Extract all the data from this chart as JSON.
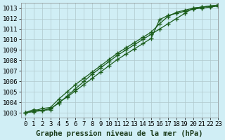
{
  "title": "Graphe pression niveau de la mer (hPa)",
  "background_color": "#d0eef5",
  "grid_color": "#b0c8cc",
  "line_color": "#1a5c1a",
  "marker_color": "#1a5c1a",
  "xlim": [
    -0.5,
    23
  ],
  "ylim": [
    1002.5,
    1013.5
  ],
  "yticks": [
    1003,
    1004,
    1005,
    1006,
    1007,
    1008,
    1009,
    1010,
    1011,
    1012,
    1013
  ],
  "xticks": [
    0,
    1,
    2,
    3,
    4,
    5,
    6,
    7,
    8,
    9,
    10,
    11,
    12,
    13,
    14,
    15,
    16,
    17,
    18,
    19,
    20,
    21,
    22,
    23
  ],
  "series": [
    [
      1003.0,
      1003.1,
      1003.2,
      1003.3,
      1004.0,
      1004.5,
      1005.1,
      1005.7,
      1006.3,
      1006.9,
      1007.5,
      1008.1,
      1008.6,
      1009.1,
      1009.6,
      1010.1,
      1011.9,
      1012.3,
      1012.5,
      1012.7,
      1012.9,
      1013.0,
      1013.1,
      1013.2
    ],
    [
      1003.0,
      1003.15,
      1003.4,
      1003.5,
      1004.3,
      1005.0,
      1005.7,
      1006.3,
      1006.9,
      1007.5,
      1008.1,
      1008.7,
      1009.2,
      1009.7,
      1010.2,
      1010.7,
      1011.5,
      1012.2,
      1012.6,
      1012.8,
      1013.0,
      1013.1,
      1013.2,
      1013.3
    ],
    [
      1003.0,
      1003.3,
      1003.2,
      1003.4,
      1003.9,
      1004.6,
      1005.3,
      1006.0,
      1006.7,
      1007.3,
      1007.9,
      1008.5,
      1009.0,
      1009.5,
      1010.0,
      1010.5,
      1011.0,
      1011.5,
      1012.0,
      1012.5,
      1013.0,
      1013.1,
      1013.2,
      1013.3
    ]
  ],
  "tick_fontsize": 6.5,
  "title_fontsize": 7.5
}
